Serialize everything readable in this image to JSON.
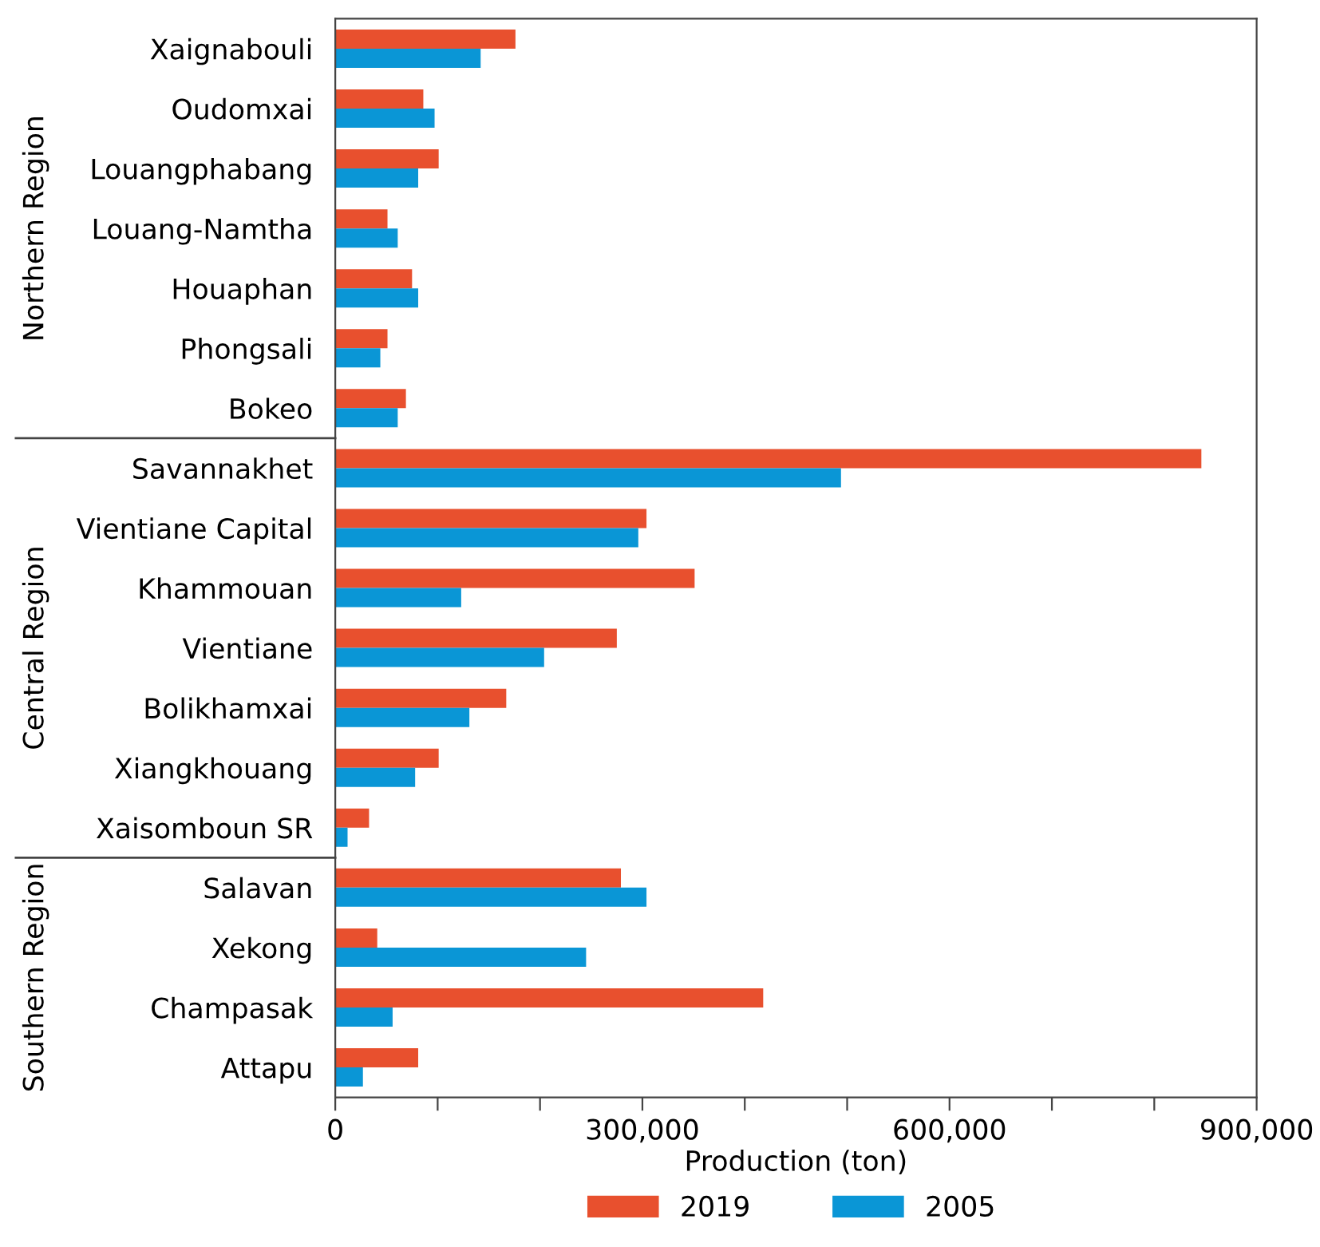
{
  "chart_data": {
    "type": "bar",
    "orientation": "horizontal",
    "xlabel": "Production (ton)",
    "categories": [
      "Xaignabouli",
      "Oudomxai",
      "Louangphabang",
      "Louang-Namtha",
      "Houaphan",
      "Phongsali",
      "Bokeo",
      "Savannakhet",
      "Vientiane Capital",
      "Khammouan",
      "Vientiane",
      "Bolikhamxai",
      "Xiangkhouang",
      "Xaisomboun SR",
      "Salavan",
      "Xekong",
      "Champasak",
      "Attapu"
    ],
    "series": [
      {
        "name": "2019",
        "color": "#e8502e",
        "values": [
          176000,
          86000,
          101000,
          51000,
          75000,
          51000,
          69000,
          846000,
          304000,
          351000,
          275000,
          167000,
          101000,
          33000,
          279000,
          41000,
          418000,
          81000
        ]
      },
      {
        "name": "2005",
        "color": "#0a96d6",
        "values": [
          142000,
          97000,
          81000,
          61000,
          81000,
          44000,
          61000,
          494000,
          296000,
          123000,
          204000,
          131000,
          78000,
          12000,
          304000,
          245000,
          56000,
          27000
        ]
      }
    ],
    "xlim": [
      0,
      900000
    ],
    "xticks": [
      0,
      {
        "value": 100000,
        "label": null
      },
      {
        "value": 200000,
        "label": null
      },
      {
        "value": 300000,
        "label": "300,000"
      },
      {
        "value": 400000,
        "label": null
      },
      {
        "value": 500000,
        "label": null
      },
      {
        "value": 600000,
        "label": "600,000"
      },
      {
        "value": 700000,
        "label": null
      },
      {
        "value": 800000,
        "label": null
      },
      {
        "value": 900000,
        "label": "900,000"
      }
    ],
    "annotations": [
      "Northern Region",
      "Central Region",
      "Southern Region"
    ],
    "grid": false,
    "legend": "bottom"
  }
}
